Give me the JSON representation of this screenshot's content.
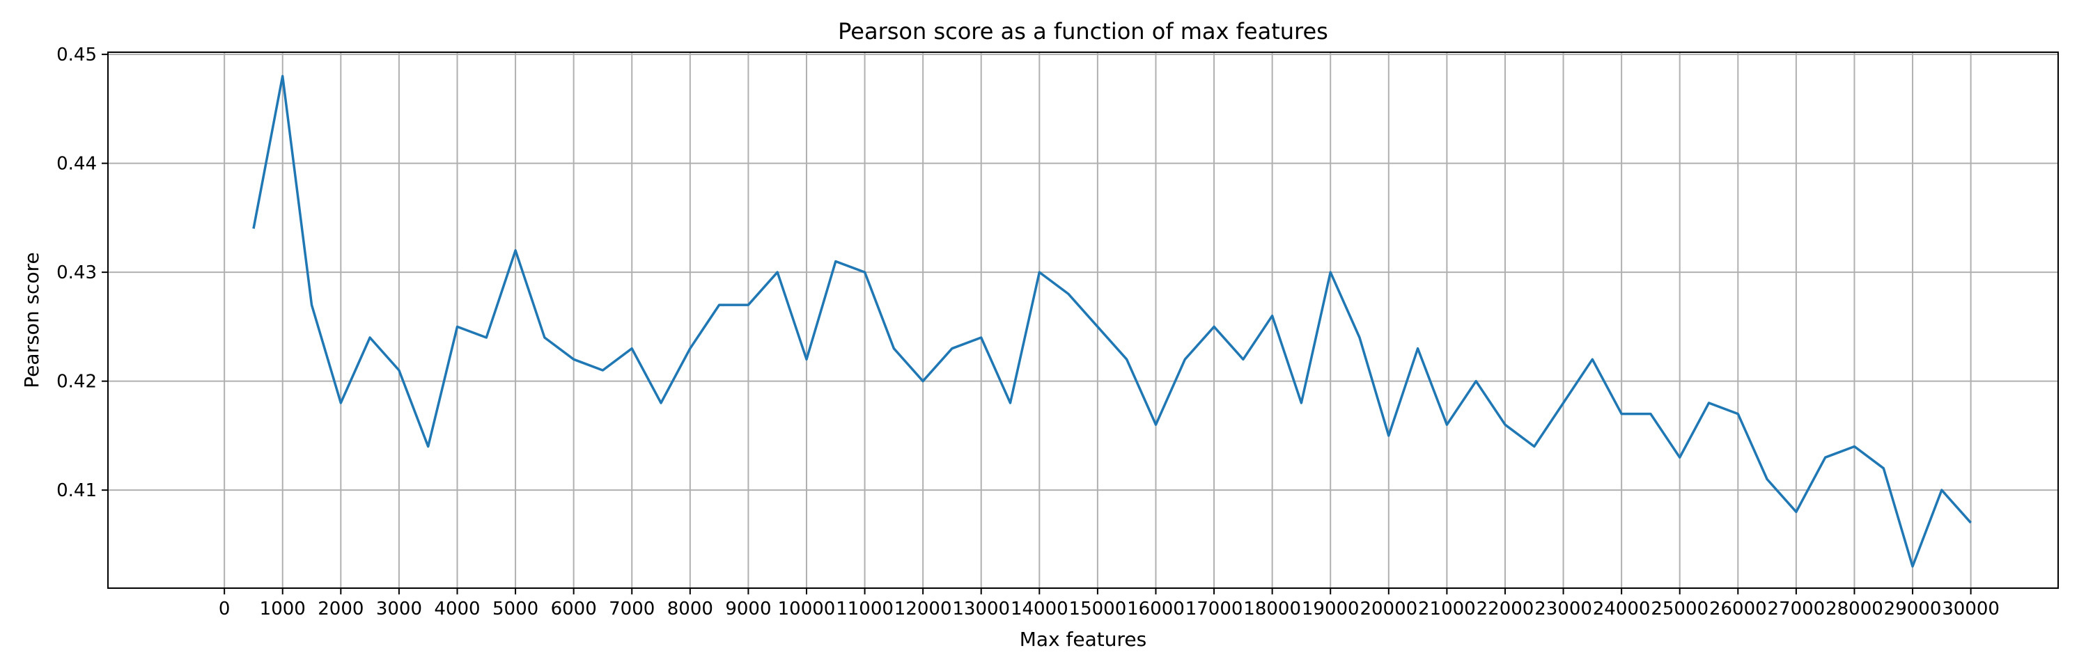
{
  "chart_data": {
    "type": "line",
    "title": "Pearson score as a function of max features",
    "xlabel": "Max features",
    "ylabel": "Pearson score",
    "xlim": [
      -2000,
      31500
    ],
    "ylim": [
      0.401,
      0.4502
    ],
    "grid": true,
    "x_ticks": [
      0,
      1000,
      2000,
      3000,
      4000,
      5000,
      6000,
      7000,
      8000,
      9000,
      10000,
      11000,
      12000,
      13000,
      14000,
      15000,
      16000,
      17000,
      18000,
      19000,
      20000,
      21000,
      22000,
      23000,
      24000,
      25000,
      26000,
      27000,
      28000,
      29000,
      30000
    ],
    "y_ticks": [
      0.41,
      0.42,
      0.43,
      0.44,
      0.45
    ],
    "y_tick_labels": [
      "0.41",
      "0.42",
      "0.43",
      "0.44",
      "0.45"
    ],
    "series": [
      {
        "color": "#1f77b4",
        "x": [
          500,
          1000,
          1500,
          2000,
          2500,
          3000,
          3500,
          4000,
          4500,
          5000,
          5500,
          6000,
          6500,
          7000,
          7500,
          8000,
          8500,
          9000,
          9500,
          10000,
          10500,
          11000,
          11500,
          12000,
          12500,
          13000,
          13500,
          14000,
          14500,
          15000,
          15500,
          16000,
          16500,
          17000,
          17500,
          18000,
          18500,
          19000,
          19500,
          20000,
          20500,
          21000,
          21500,
          22000,
          22500,
          23000,
          23500,
          24000,
          24500,
          25000,
          25500,
          26000,
          26500,
          27000,
          27500,
          28000,
          28500,
          29000,
          29500,
          30000
        ],
        "y": [
          0.434,
          0.448,
          0.427,
          0.418,
          0.424,
          0.421,
          0.414,
          0.425,
          0.424,
          0.432,
          0.424,
          0.422,
          0.421,
          0.423,
          0.418,
          0.423,
          0.427,
          0.427,
          0.43,
          0.422,
          0.431,
          0.43,
          0.423,
          0.42,
          0.423,
          0.424,
          0.418,
          0.43,
          0.428,
          0.425,
          0.422,
          0.416,
          0.422,
          0.425,
          0.422,
          0.426,
          0.418,
          0.43,
          0.424,
          0.415,
          0.423,
          0.416,
          0.42,
          0.416,
          0.414,
          0.418,
          0.422,
          0.417,
          0.417,
          0.413,
          0.418,
          0.417,
          0.411,
          0.408,
          0.413,
          0.414,
          0.412,
          0.403,
          0.41,
          0.407
        ]
      }
    ]
  }
}
